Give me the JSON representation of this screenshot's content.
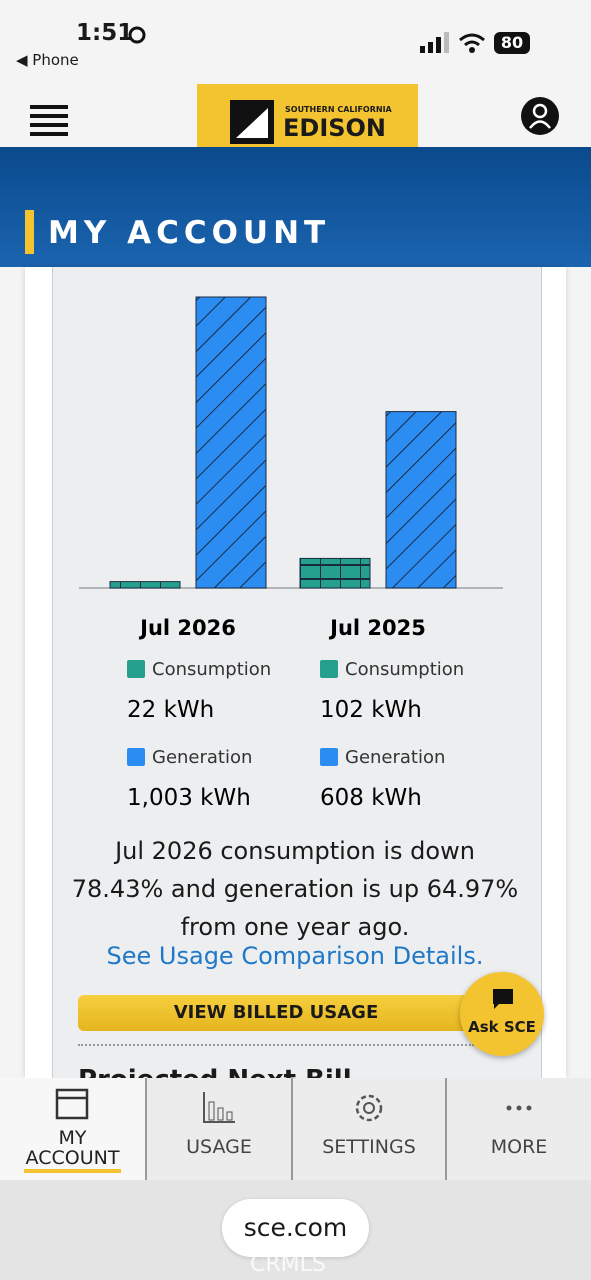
{
  "status_bar": {
    "time": "1:51",
    "back": "◀ Phone",
    "battery": "80"
  },
  "header": {
    "logo_small": "SOUTHERN CALIFORNIA",
    "logo_big": "EDISON",
    "banner": "MY ACCOUNT"
  },
  "chart_data": {
    "type": "bar",
    "categories": [
      "Jul 2026",
      "Jul 2025"
    ],
    "series": [
      {
        "name": "Consumption",
        "color": "#26a08e",
        "values": [
          22,
          102
        ],
        "value_labels": [
          "22 kWh",
          "102 kWh"
        ]
      },
      {
        "name": "Generation",
        "color": "#2b8cf2",
        "values": [
          1003,
          608
        ],
        "value_labels": [
          "1,003 kWh",
          "608 kWh"
        ]
      }
    ]
  },
  "summary": "Jul 2026 consumption is down 78.43% and generation is up 64.97% from one year ago.",
  "link": "See Usage Comparison Details.",
  "button": "VIEW BILLED USAGE",
  "ask": "Ask SCE",
  "next_section": "Projected Next Bill",
  "nav": [
    "MY ACCOUNT",
    "USAGE",
    "SETTINGS",
    "MORE"
  ],
  "url": "sce.com",
  "watermark": "CRMLS"
}
